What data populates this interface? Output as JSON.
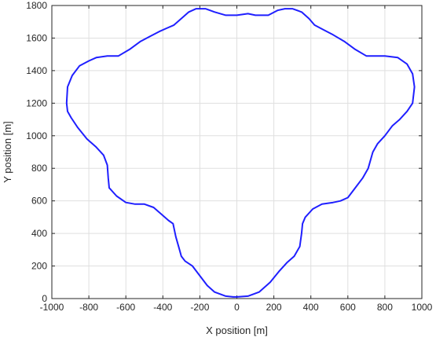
{
  "chart_data": {
    "type": "line",
    "xlabel": "X position [m]",
    "ylabel": "Y position [m]",
    "xlim": [
      -1000,
      1000
    ],
    "ylim": [
      0,
      1800
    ],
    "xticks": [
      -1000,
      -800,
      -600,
      -400,
      -200,
      0,
      200,
      400,
      600,
      800,
      1000
    ],
    "yticks": [
      0,
      200,
      400,
      600,
      800,
      1000,
      1200,
      1400,
      1600,
      1800
    ],
    "grid": true,
    "series": [
      {
        "color": "#1f1fff",
        "x": [
          0,
          60,
          120,
          180,
          230,
          270,
          310,
          340,
          350,
          355,
          370,
          410,
          460,
          520,
          560,
          600,
          640,
          680,
          710,
          730,
          735,
          760,
          800,
          840,
          880,
          920,
          950,
          960,
          950,
          920,
          870,
          800,
          700,
          640,
          580,
          520,
          470,
          420,
          390,
          350,
          300,
          260,
          220,
          170,
          100,
          60,
          0,
          -60,
          -120,
          -170,
          -220,
          -260,
          -300,
          -340,
          -380,
          -420,
          -470,
          -520,
          -580,
          -640,
          -700,
          -760,
          -800,
          -850,
          -890,
          -915,
          -920,
          -915,
          -895,
          -860,
          -810,
          -760,
          -720,
          -700,
          -695,
          -690,
          -650,
          -600,
          -550,
          -500,
          -450,
          -400,
          -370,
          -345,
          -330,
          -310,
          -300,
          -280,
          -240,
          -200,
          -160,
          -120,
          -60,
          -20,
          0
        ],
        "y": [
          10,
          15,
          40,
          100,
          170,
          220,
          260,
          320,
          400,
          460,
          500,
          550,
          580,
          590,
          600,
          620,
          680,
          740,
          800,
          880,
          900,
          950,
          1000,
          1060,
          1100,
          1150,
          1200,
          1300,
          1380,
          1440,
          1480,
          1490,
          1490,
          1530,
          1580,
          1620,
          1650,
          1680,
          1720,
          1760,
          1780,
          1780,
          1770,
          1740,
          1740,
          1750,
          1740,
          1740,
          1760,
          1780,
          1780,
          1760,
          1720,
          1680,
          1660,
          1640,
          1610,
          1580,
          1530,
          1490,
          1490,
          1480,
          1460,
          1430,
          1370,
          1300,
          1200,
          1150,
          1110,
          1050,
          980,
          930,
          880,
          820,
          740,
          680,
          630,
          590,
          580,
          580,
          560,
          510,
          480,
          460,
          380,
          300,
          260,
          230,
          200,
          140,
          80,
          40,
          15,
          10,
          10
        ]
      }
    ]
  }
}
